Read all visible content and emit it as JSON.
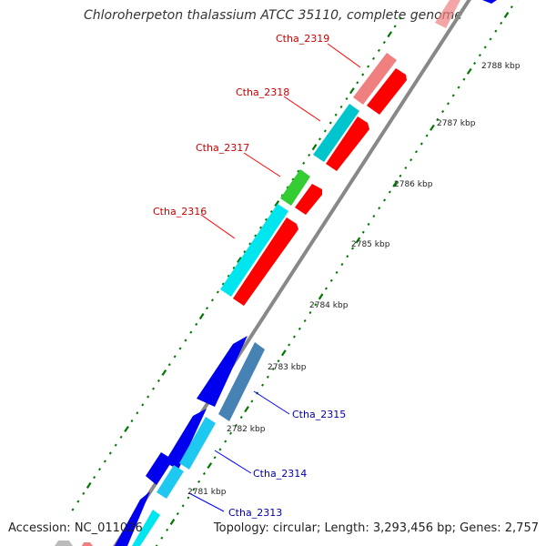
{
  "title": "Chloroherpeton thalassium ATCC 35110, complete genome",
  "footer": {
    "accession": "Accession: NC_011026",
    "summary": "Topology: circular; Length: 3,293,456 bp; Genes: 2,757"
  },
  "ticks": [
    "2781 kbp",
    "2782 kbp",
    "2783 kbp",
    "2784 kbp",
    "2785 kbp",
    "2786 kbp",
    "2787 kbp",
    "2788 kbp"
  ],
  "genes": [
    {
      "label": "Ctha_2319",
      "color": "#cc0000"
    },
    {
      "label": "Ctha_2318",
      "color": "#cc0000"
    },
    {
      "label": "Ctha_2317",
      "color": "#cc0000"
    },
    {
      "label": "Ctha_2316",
      "color": "#cc0000"
    },
    {
      "label": "Ctha_2315",
      "color": "#0000aa"
    },
    {
      "label": "Ctha_2314",
      "color": "#0000aa"
    },
    {
      "label": "Ctha_2313",
      "color": "#0000aa"
    }
  ],
  "colors": {
    "backbone": "#888888",
    "forward_cds": "#ff0000",
    "reverse_cds": "#0000ee",
    "cog_cyan": "#00e5ee",
    "cog_teal": "#00c5cd",
    "cog_pink": "#f08080",
    "cog_green": "#33cc33",
    "cog_steelblue": "#4682b4",
    "cog_skyblue": "#1ec8f0",
    "gc_dots": "#007700"
  }
}
